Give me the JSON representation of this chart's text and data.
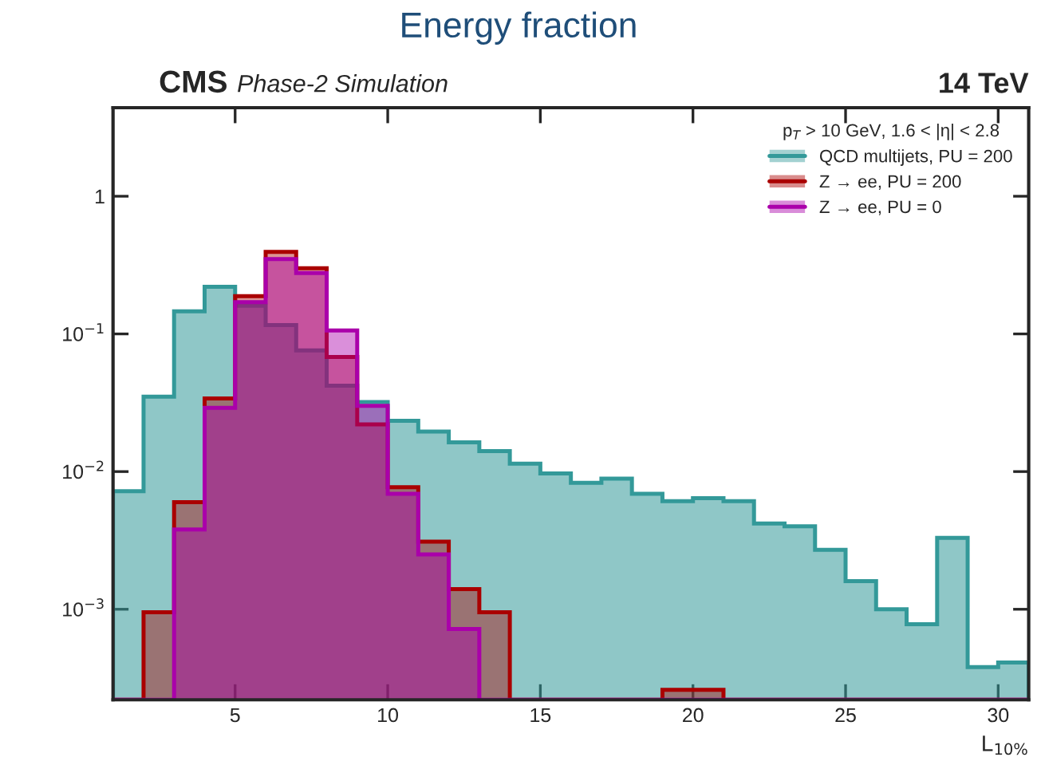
{
  "chart_data": {
    "type": "histogram",
    "title": "CMS",
    "subtitle": "Phase-2 Simulation",
    "annotations": [
      "Energy fraction",
      "14 TeV"
    ],
    "xlabel": "L$_{10%}$",
    "legend_title": "p$_{T}$ > 10 GeV, 1.6 < |η| < 2.8",
    "bins": [
      1,
      2,
      3,
      4,
      5,
      6,
      7,
      8,
      9,
      10,
      11,
      12,
      13,
      14,
      15,
      16,
      17,
      18,
      19,
      20,
      21,
      22,
      23,
      24,
      25,
      26,
      27,
      28,
      29,
      30,
      31
    ],
    "series": [
      {
        "name": "QCD multijets, PU = 200",
        "color": "#339999",
        "values": [
          0.0072,
          0.035,
          0.146,
          0.22,
          0.16,
          0.116,
          0.076,
          0.042,
          0.032,
          0.0234,
          0.0195,
          0.0163,
          0.0141,
          0.0114,
          0.0097,
          0.0083,
          0.0089,
          0.0069,
          0.0061,
          0.0064,
          0.0061,
          0.0042,
          0.004,
          0.0027,
          0.0016,
          0.001,
          0.00078,
          0.0033,
          0.00038,
          0.00041
        ]
      },
      {
        "name": "Z → ee, PU = 200",
        "color": "#aa0000",
        "values": [
          null,
          0.00095,
          0.006,
          0.034,
          0.188,
          0.395,
          0.3,
          0.068,
          0.022,
          0.0077,
          0.0031,
          0.0014,
          0.00095,
          null,
          null,
          null,
          null,
          null,
          0.00026,
          0.00026,
          null,
          null,
          null,
          null,
          null,
          null,
          null,
          null,
          null,
          null
        ]
      },
      {
        "name": "Z → ee, PU = 0",
        "color": "#aa00aa",
        "values": [
          null,
          null,
          0.0038,
          0.029,
          0.17,
          0.35,
          0.277,
          0.106,
          0.03,
          0.0069,
          0.0025,
          0.00072,
          null,
          null,
          null,
          null,
          null,
          null,
          null,
          null,
          null,
          null,
          null,
          null,
          null,
          null,
          null,
          null,
          null,
          null
        ]
      }
    ],
    "log": "y",
    "xlim": [
      1,
      31
    ],
    "xticks": [
      5,
      10,
      15,
      20,
      25,
      30
    ],
    "ylim": [
      0.00022,
      4.4
    ],
    "yticks": [
      {
        "value": 0.001,
        "label": "10$^{−3}$"
      },
      {
        "value": 0.01,
        "label": "10$^{−2}$"
      },
      {
        "value": 0.1,
        "label": "10$^{−1}$"
      },
      1
    ],
    "legend": "top right",
    "grid": false
  }
}
